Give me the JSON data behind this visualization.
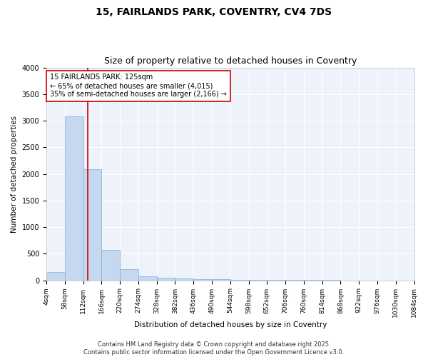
{
  "title1": "15, FAIRLANDS PARK, COVENTRY, CV4 7DS",
  "title2": "Size of property relative to detached houses in Coventry",
  "xlabel": "Distribution of detached houses by size in Coventry",
  "ylabel": "Number of detached properties",
  "bin_edges": [
    4,
    58,
    112,
    166,
    220,
    274,
    328,
    382,
    436,
    490,
    544,
    598,
    652,
    706,
    760,
    814,
    868,
    922,
    976,
    1030,
    1084
  ],
  "bar_heights": [
    150,
    3080,
    2090,
    570,
    210,
    70,
    50,
    30,
    20,
    15,
    10,
    5,
    5,
    3,
    2,
    2,
    1,
    1,
    1,
    1
  ],
  "bar_color": "#c5d8ef",
  "bar_edge_color": "#7aafd4",
  "background_color": "#eef2fb",
  "grid_color": "#ffffff",
  "property_line_x": 125,
  "property_line_color": "#cc0000",
  "annotation_text": "15 FAIRLANDS PARK: 125sqm\n← 65% of detached houses are smaller (4,015)\n35% of semi-detached houses are larger (2,166) →",
  "annotation_box_color": "#ffffff",
  "annotation_box_edge_color": "#cc0000",
  "ylim": [
    0,
    4000
  ],
  "yticks": [
    0,
    500,
    1000,
    1500,
    2000,
    2500,
    3000,
    3500,
    4000
  ],
  "footnote1": "Contains HM Land Registry data © Crown copyright and database right 2025.",
  "footnote2": "Contains public sector information licensed under the Open Government Licence v3.0.",
  "title1_fontsize": 10,
  "title2_fontsize": 9,
  "annotation_fontsize": 7,
  "axis_label_fontsize": 7.5,
  "tick_fontsize": 7,
  "footnote_fontsize": 6
}
